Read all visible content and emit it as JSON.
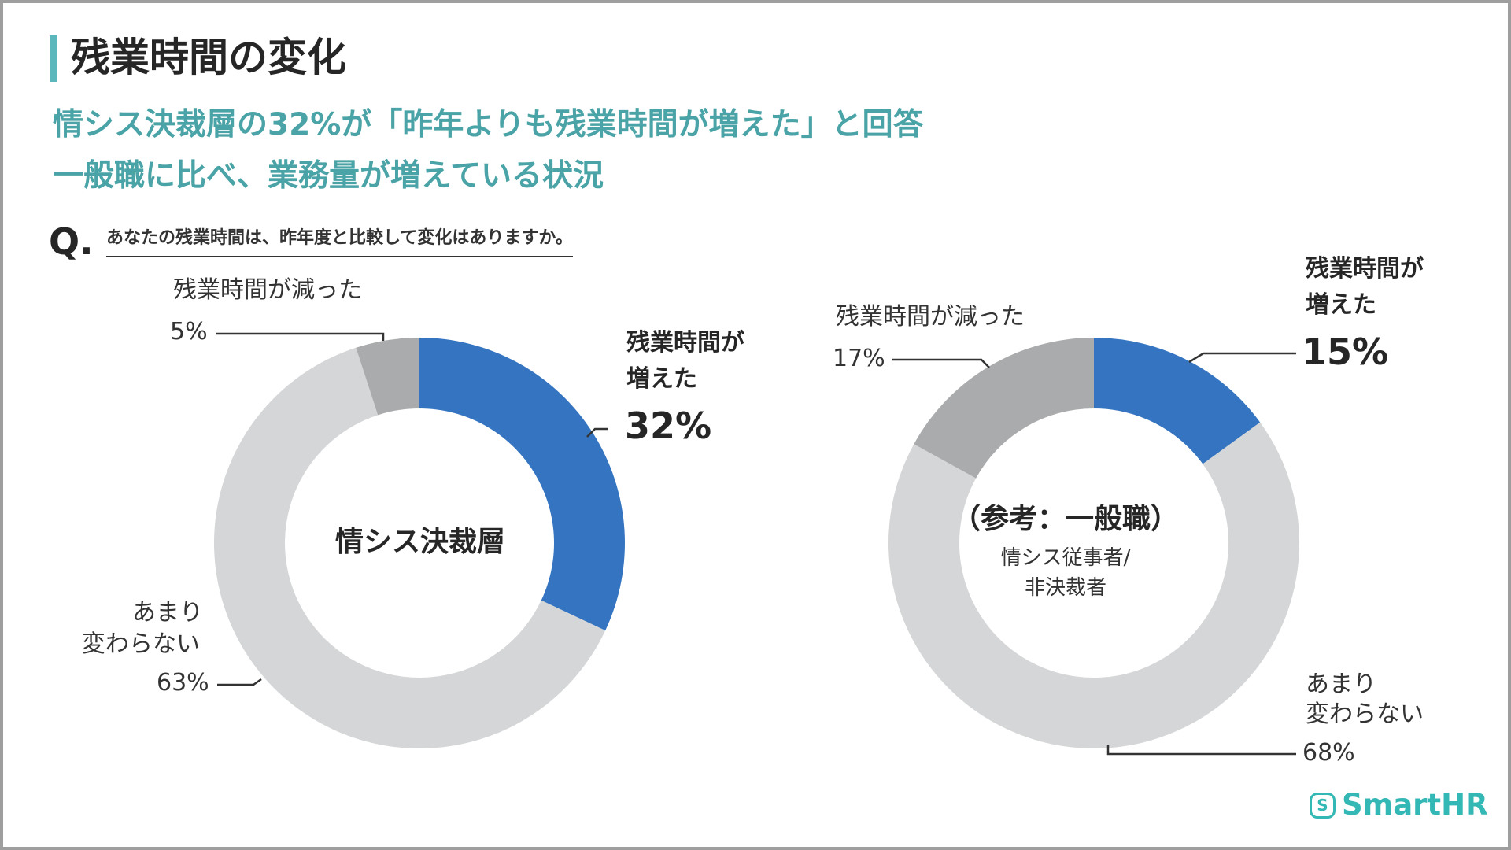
{
  "title": "残業時間の変化",
  "headline": [
    "情シス決裁層の32%が「昨年よりも残業時間が増えた」と回答",
    "一般職に比べ、業務量が増えている状況"
  ],
  "question": {
    "mark": "Q.",
    "text": "あなたの残業時間は、昨年度と比較して変化はありますか。"
  },
  "chart_data": [
    {
      "type": "pie",
      "donut": true,
      "center_label": "情シス決裁層",
      "center_sublabel": "",
      "slices": [
        {
          "label": "残業時間が増えた",
          "value": 32,
          "color": "#3474c1"
        },
        {
          "label": "あまり変わらない",
          "value": 63,
          "color": "#d4d6d7"
        },
        {
          "label": "残業時間が減った",
          "value": 5,
          "color": "#aaabac"
        }
      ],
      "labels": {
        "increase": {
          "lines": [
            "残業時間が",
            "増えた"
          ],
          "pct": "32%"
        },
        "nochange": {
          "lines": [
            "あまり",
            "変わらない"
          ],
          "pct": "63%"
        },
        "decrease": {
          "lines": [
            "残業時間が減った"
          ],
          "pct": "5%"
        }
      }
    },
    {
      "type": "pie",
      "donut": true,
      "center_label": "（参考：一般職）",
      "center_sublabel": [
        "情シス従事者/",
        "非決裁者"
      ],
      "slices": [
        {
          "label": "残業時間が増えた",
          "value": 15,
          "color": "#3474c1"
        },
        {
          "label": "あまり変わらない",
          "value": 68,
          "color": "#d4d6d7"
        },
        {
          "label": "残業時間が減った",
          "value": 17,
          "color": "#aaabac"
        }
      ],
      "labels": {
        "increase": {
          "lines": [
            "残業時間が",
            "増えた"
          ],
          "pct": "15%"
        },
        "nochange": {
          "lines": [
            "あまり",
            "変わらない"
          ],
          "pct": "68%"
        },
        "decrease": {
          "lines": [
            "残業時間が減った"
          ],
          "pct": "17%"
        }
      }
    }
  ],
  "logo": {
    "icon": "s-logo-icon",
    "text": "SmartHR",
    "color": "#34b8b5"
  }
}
